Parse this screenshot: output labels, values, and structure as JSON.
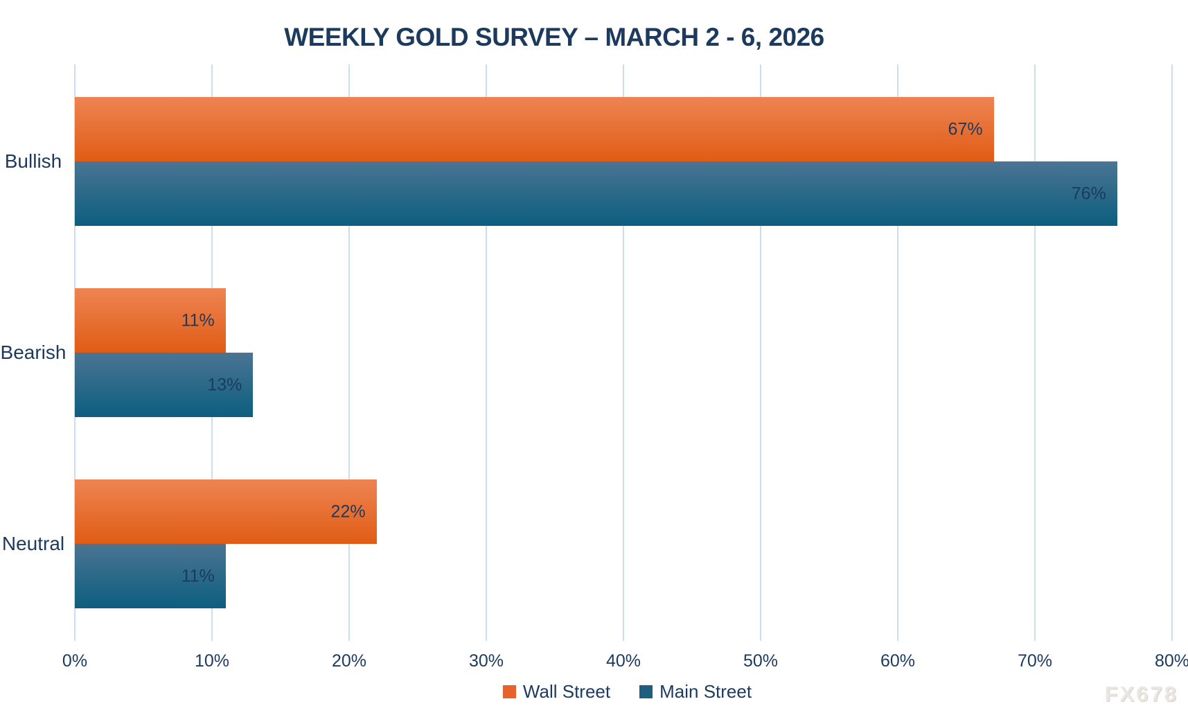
{
  "chart_data": {
    "type": "bar",
    "orientation": "horizontal",
    "title": "WEEKLY GOLD SURVEY – MARCH 2 - 6, 2026",
    "categories": [
      "Bullish",
      "Bearish",
      "Neutral"
    ],
    "series": [
      {
        "name": "Wall Street",
        "values": [
          67,
          11,
          22
        ],
        "legend_color": "#e8632b",
        "gradient_top": "#ee8453",
        "gradient_bottom": "#e05c15"
      },
      {
        "name": "Main Street",
        "values": [
          76,
          13,
          11
        ],
        "legend_color": "#1e5e7e",
        "gradient_top": "#4b7493",
        "gradient_bottom": "#0c5e7f"
      }
    ],
    "data_labels": [
      [
        "67%",
        "11%",
        "22%"
      ],
      [
        "76%",
        "13%",
        "11%"
      ]
    ],
    "x_ticks": [
      "0%",
      "10%",
      "20%",
      "30%",
      "40%",
      "50%",
      "60%",
      "70%",
      "80%"
    ],
    "xlim": [
      0,
      80
    ],
    "grid": "vertical",
    "gridline_color": "#cbdef1",
    "legend_position": "bottom",
    "text_color": "#1c3a5e"
  },
  "watermark": "FX678"
}
